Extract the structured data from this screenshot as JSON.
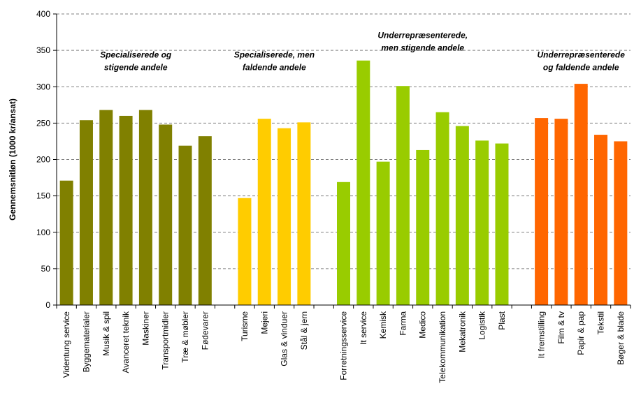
{
  "chart_data": {
    "type": "bar",
    "ylabel": "Gennemsnitløn (1000 kr/ansat)",
    "ylim": [
      0,
      400
    ],
    "yticks": [
      0,
      50,
      100,
      150,
      200,
      250,
      300,
      350,
      400
    ],
    "grid": "horizontal dashed",
    "groups": [
      {
        "label_lines": [
          "Specialiserede og",
          "stigende andele"
        ],
        "color": "#808000",
        "categories": [
          "Videntung service",
          "Byggematerialer",
          "Musik & spil",
          "Avanceret teknik",
          "Maskiner",
          "Transportmidler",
          "Træ & møbler",
          "Fødevarer"
        ],
        "values": [
          171,
          254,
          268,
          260,
          268,
          248,
          219,
          232
        ]
      },
      {
        "label_lines": [
          "Specialiserede, men",
          "faldende andele"
        ],
        "color": "#ffcc00",
        "categories": [
          "Turisme",
          "Mejeri",
          "Glas & vinduer",
          "Stål & jern"
        ],
        "values": [
          147,
          256,
          243,
          251
        ]
      },
      {
        "label_lines": [
          "Underrepræsenterede,",
          "men stigende andele"
        ],
        "color": "#99cc00",
        "categories": [
          "Forretningsservice",
          "It service",
          "Kemisk",
          "Farma",
          "Medico",
          "Telekommunikation",
          "Mekatronik",
          "Logistik",
          "Plast"
        ],
        "values": [
          169,
          336,
          197,
          301,
          213,
          265,
          246,
          226,
          222
        ]
      },
      {
        "label_lines": [
          "Underrepræsenterede",
          "og faldende andele"
        ],
        "color": "#ff6600",
        "categories": [
          "It fremstilling",
          "Film & tv",
          "Papir & pap",
          "Tekstil",
          "Bøger & blade"
        ],
        "values": [
          257,
          256,
          304,
          234,
          225
        ]
      }
    ]
  }
}
